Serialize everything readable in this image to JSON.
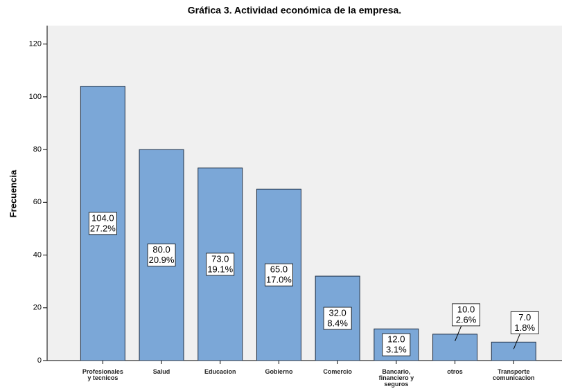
{
  "chart_data": {
    "type": "bar",
    "title": "Gráfica 3. Actividad económica de la empresa.",
    "y_label": "Frecuencia",
    "categories": [
      "Profesionales\ny tecnicos",
      "Salud",
      "Educacion",
      "Gobierno",
      "Comercio",
      "Bancario,\nfinanciero y\nseguros",
      "otros",
      "Transporte\ncomunicacion"
    ],
    "values": [
      104,
      80,
      73,
      65,
      32,
      12,
      10,
      7
    ],
    "value_labels": [
      "104.0",
      "80.0",
      "73.0",
      "65.0",
      "32.0",
      "12.0",
      "10.0",
      "7.0"
    ],
    "percent_labels": [
      "27.2%",
      "20.9%",
      "19.1%",
      "17.0%",
      "8.4%",
      "3.1%",
      "2.6%",
      "1.8%"
    ],
    "color": "#7ba7d7",
    "ylim": [
      0,
      127
    ],
    "yticks": [
      0,
      20,
      40,
      60,
      80,
      100,
      120
    ]
  }
}
